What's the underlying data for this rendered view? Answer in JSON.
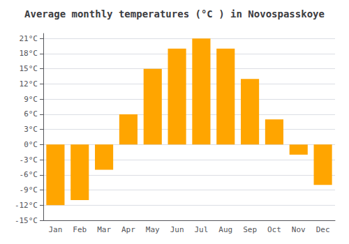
{
  "chart_data": {
    "type": "bar",
    "title": "Average monthly temperatures (°C ) in Novospasskoye",
    "categories": [
      "Jan",
      "Feb",
      "Mar",
      "Apr",
      "May",
      "Jun",
      "Jul",
      "Aug",
      "Sep",
      "Oct",
      "Nov",
      "Dec"
    ],
    "values": [
      -12,
      -11,
      -5,
      6,
      15,
      19,
      21,
      19,
      13,
      5,
      -2,
      -8
    ],
    "color": "#FFA500",
    "ylim": [
      -15,
      22
    ],
    "yticks": [
      {
        "value": -15,
        "label": "-15°C"
      },
      {
        "value": -12,
        "label": "-12°C"
      },
      {
        "value": -9,
        "label": "-9°C"
      },
      {
        "value": -6,
        "label": "-6°C"
      },
      {
        "value": -3,
        "label": "-3°C"
      },
      {
        "value": 0,
        "label": "0°C"
      },
      {
        "value": 3,
        "label": "3°C"
      },
      {
        "value": 6,
        "label": "6°C"
      },
      {
        "value": 9,
        "label": "9°C"
      },
      {
        "value": 12,
        "label": "12°C"
      },
      {
        "value": 15,
        "label": "15°C"
      },
      {
        "value": 18,
        "label": "18°C"
      },
      {
        "value": 21,
        "label": "21°C"
      }
    ],
    "grid": true
  }
}
